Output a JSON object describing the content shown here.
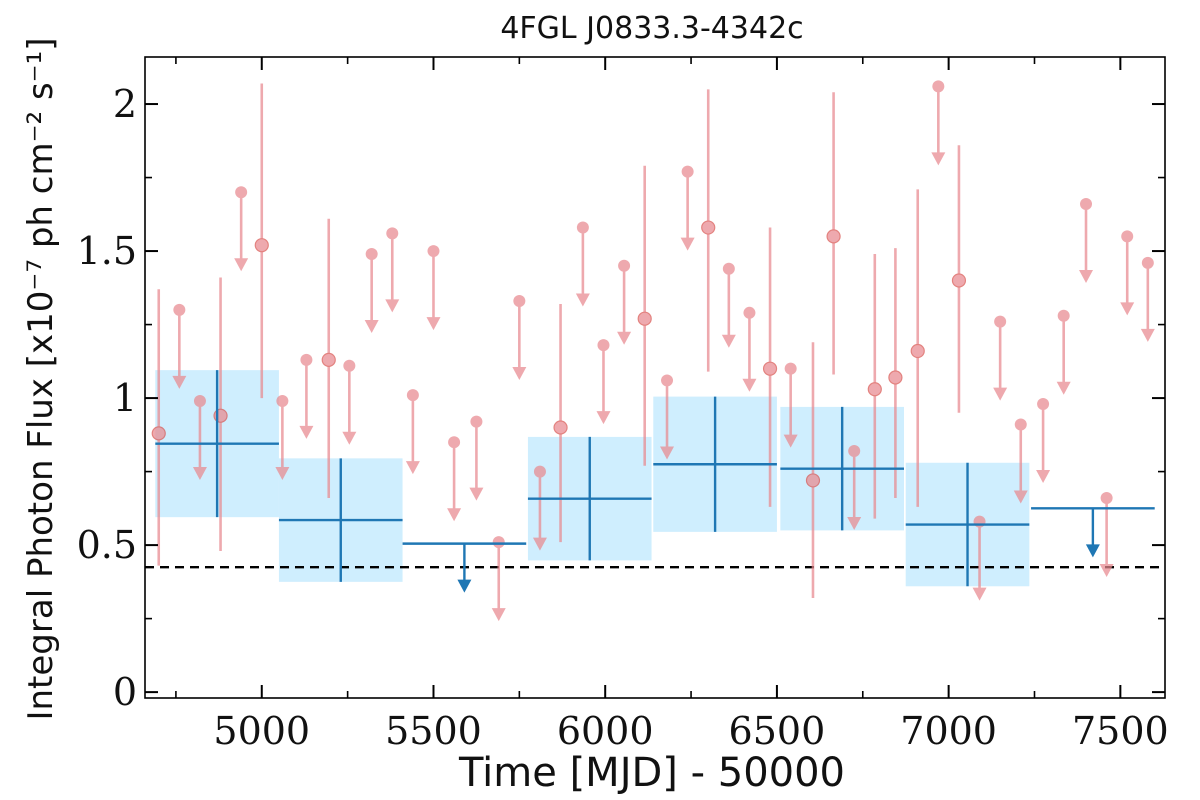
{
  "chart_data": {
    "type": "scatter",
    "title": "4FGL J0833.3-4342c",
    "xlabel": "Time [MJD] - 50000",
    "ylabel": "Integral Photon Flux [x10⁻⁷ ph cm⁻² s⁻¹]",
    "xlim": [
      4660,
      7630
    ],
    "ylim": [
      -0.02,
      2.16
    ],
    "xticks": [
      5000,
      5500,
      6000,
      6500,
      7000,
      7500
    ],
    "xtick_labels": [
      "5000",
      "5500",
      "6000",
      "6500",
      "7000",
      "7500"
    ],
    "yticks": [
      0,
      0.5,
      1,
      1.5,
      2
    ],
    "ytick_labels": [
      "0",
      "0.5",
      "1",
      "1.5",
      "2"
    ],
    "grid": false,
    "reference_line": {
      "y": 0.425,
      "style": "dashed",
      "color": "#000000"
    },
    "colors": {
      "coarse": "#1f77b4",
      "coarse_fill": "#cfeefe",
      "fine": "#e8898f"
    },
    "series": [
      {
        "bins": [
          {
            "x": 4870,
            "xerr": 180,
            "y": 0.845,
            "yerr": 0.25,
            "upper_limit": false
          },
          {
            "x": 5230,
            "xerr": 180,
            "y": 0.585,
            "yerr": 0.21,
            "upper_limit": false
          },
          {
            "x": 5590,
            "xerr": 180,
            "y": 0.505,
            "yerr": 0.0,
            "upper_limit": true
          },
          {
            "x": 5955,
            "xerr": 180,
            "y": 0.658,
            "yerr": 0.21,
            "upper_limit": false
          },
          {
            "x": 6320,
            "xerr": 180,
            "y": 0.775,
            "yerr": 0.23,
            "upper_limit": false
          },
          {
            "x": 6690,
            "xerr": 180,
            "y": 0.76,
            "yerr": 0.21,
            "upper_limit": false
          },
          {
            "x": 7055,
            "xerr": 180,
            "y": 0.57,
            "yerr": 0.21,
            "upper_limit": false
          },
          {
            "x": 7420,
            "xerr": 180,
            "y": 0.625,
            "yerr": 0.0,
            "upper_limit": true
          }
        ]
      },
      {
        "points": [
          {
            "x": 4700,
            "y": 0.88,
            "lo": 0.43,
            "hi": 1.37,
            "upper_limit": false
          },
          {
            "x": 4760,
            "y": 1.3,
            "upper_limit": true
          },
          {
            "x": 4820,
            "y": 0.99,
            "upper_limit": true
          },
          {
            "x": 4880,
            "y": 0.94,
            "lo": 0.48,
            "hi": 1.41,
            "upper_limit": false
          },
          {
            "x": 4940,
            "y": 1.7,
            "upper_limit": true
          },
          {
            "x": 5000,
            "y": 1.52,
            "lo": 1.0,
            "hi": 2.07,
            "upper_limit": false
          },
          {
            "x": 5060,
            "y": 0.99,
            "upper_limit": true
          },
          {
            "x": 5130,
            "y": 1.13,
            "upper_limit": true
          },
          {
            "x": 5195,
            "y": 1.13,
            "lo": 0.66,
            "hi": 1.61,
            "upper_limit": false
          },
          {
            "x": 5255,
            "y": 1.11,
            "upper_limit": true
          },
          {
            "x": 5320,
            "y": 1.49,
            "upper_limit": true
          },
          {
            "x": 5380,
            "y": 1.56,
            "upper_limit": true
          },
          {
            "x": 5440,
            "y": 1.01,
            "upper_limit": true
          },
          {
            "x": 5500,
            "y": 1.5,
            "upper_limit": true
          },
          {
            "x": 5560,
            "y": 0.85,
            "upper_limit": true
          },
          {
            "x": 5625,
            "y": 0.92,
            "upper_limit": true
          },
          {
            "x": 5690,
            "y": 0.51,
            "upper_limit": true
          },
          {
            "x": 5750,
            "y": 1.33,
            "upper_limit": true
          },
          {
            "x": 5810,
            "y": 0.75,
            "upper_limit": true
          },
          {
            "x": 5870,
            "y": 0.9,
            "lo": 0.51,
            "hi": 1.32,
            "upper_limit": false
          },
          {
            "x": 5935,
            "y": 1.58,
            "upper_limit": true
          },
          {
            "x": 5995,
            "y": 1.18,
            "upper_limit": true
          },
          {
            "x": 6055,
            "y": 1.45,
            "upper_limit": true
          },
          {
            "x": 6115,
            "y": 1.27,
            "lo": 0.77,
            "hi": 1.79,
            "upper_limit": false
          },
          {
            "x": 6180,
            "y": 1.06,
            "upper_limit": true
          },
          {
            "x": 6240,
            "y": 1.77,
            "upper_limit": true
          },
          {
            "x": 6300,
            "y": 1.58,
            "lo": 1.09,
            "hi": 2.05,
            "upper_limit": false
          },
          {
            "x": 6360,
            "y": 1.44,
            "upper_limit": true
          },
          {
            "x": 6420,
            "y": 1.29,
            "upper_limit": true
          },
          {
            "x": 6480,
            "y": 1.1,
            "lo": 0.63,
            "hi": 1.58,
            "upper_limit": false
          },
          {
            "x": 6540,
            "y": 1.1,
            "upper_limit": true
          },
          {
            "x": 6605,
            "y": 0.72,
            "lo": 0.32,
            "hi": 1.19,
            "upper_limit": false
          },
          {
            "x": 6665,
            "y": 1.55,
            "lo": 1.08,
            "hi": 2.04,
            "upper_limit": false
          },
          {
            "x": 6725,
            "y": 0.82,
            "upper_limit": true
          },
          {
            "x": 6785,
            "y": 1.03,
            "lo": 0.59,
            "hi": 1.49,
            "upper_limit": false
          },
          {
            "x": 6845,
            "y": 1.07,
            "lo": 0.66,
            "hi": 1.51,
            "upper_limit": false
          },
          {
            "x": 6910,
            "y": 1.16,
            "lo": 0.63,
            "hi": 1.71,
            "upper_limit": false
          },
          {
            "x": 6970,
            "y": 2.06,
            "upper_limit": true
          },
          {
            "x": 7030,
            "y": 1.4,
            "lo": 0.95,
            "hi": 1.86,
            "upper_limit": false
          },
          {
            "x": 7090,
            "y": 0.58,
            "upper_limit": true
          },
          {
            "x": 7150,
            "y": 1.26,
            "upper_limit": true
          },
          {
            "x": 7210,
            "y": 0.91,
            "upper_limit": true
          },
          {
            "x": 7275,
            "y": 0.98,
            "upper_limit": true
          },
          {
            "x": 7335,
            "y": 1.28,
            "upper_limit": true
          },
          {
            "x": 7400,
            "y": 1.66,
            "upper_limit": true
          },
          {
            "x": 7460,
            "y": 0.66,
            "upper_limit": true
          },
          {
            "x": 7520,
            "y": 1.55,
            "upper_limit": true
          },
          {
            "x": 7580,
            "y": 1.46,
            "upper_limit": true
          }
        ]
      }
    ]
  }
}
